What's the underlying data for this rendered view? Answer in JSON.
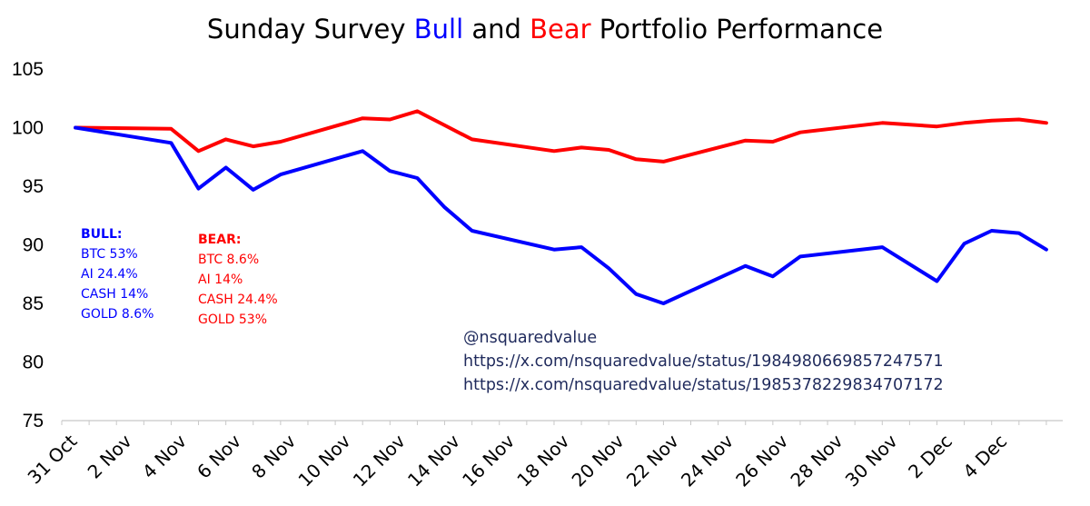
{
  "chart_data": {
    "type": "line",
    "title_parts": [
      {
        "text": "Sunday Survey ",
        "color": "#000000"
      },
      {
        "text": "Bull",
        "color": "#0000ff"
      },
      {
        "text": " and ",
        "color": "#000000"
      },
      {
        "text": "Bear",
        "color": "#ff0000"
      },
      {
        "text": " Portfolio Performance",
        "color": "#000000"
      }
    ],
    "xlabel": "",
    "ylabel": "",
    "ylim": [
      75,
      105
    ],
    "yticks": [
      75,
      80,
      85,
      90,
      95,
      100,
      105
    ],
    "xlim": [
      0,
      36.6
    ],
    "x_tick_positions": [
      0,
      2,
      4,
      6,
      8,
      10,
      12,
      14,
      16,
      18,
      20,
      22,
      24,
      26,
      28,
      30,
      32,
      34
    ],
    "x_tick_labels": [
      "31 Oct",
      "2 Nov",
      "4 Nov",
      "6 Nov",
      "8 Nov",
      "10 Nov",
      "12 Nov",
      "14 Nov",
      "16 Nov",
      "18 Nov",
      "20 Nov",
      "22 Nov",
      "24 Nov",
      "26 Nov",
      "28 Nov",
      "30 Nov",
      "2 Dec",
      "4 Dec"
    ],
    "grid": false,
    "series": [
      {
        "name": "Bull",
        "color": "#0000ff",
        "x": [
          0.5,
          4.0,
          5.0,
          6.0,
          7.0,
          8.0,
          11.0,
          12.0,
          13.0,
          14.0,
          15.0,
          18.0,
          19.0,
          20.0,
          21.0,
          22.0,
          25.0,
          26.0,
          27.0,
          30.0,
          32.0,
          33.0,
          34.0,
          35.0,
          36.0
        ],
        "values": [
          100.0,
          98.7,
          94.8,
          96.6,
          94.7,
          96.0,
          98.0,
          96.3,
          95.7,
          93.2,
          91.2,
          89.6,
          89.8,
          88.0,
          85.8,
          85.0,
          88.2,
          87.3,
          89.0,
          89.8,
          86.9,
          90.1,
          91.2,
          91.0,
          89.6
        ]
      },
      {
        "name": "Bear",
        "color": "#ff0000",
        "x": [
          0.5,
          4.0,
          5.0,
          6.0,
          7.0,
          8.0,
          11.0,
          12.0,
          13.0,
          14.0,
          15.0,
          18.0,
          19.0,
          20.0,
          21.0,
          22.0,
          25.0,
          26.0,
          27.0,
          30.0,
          32.0,
          33.0,
          34.0,
          35.0,
          36.0
        ],
        "values": [
          100.0,
          99.9,
          98.0,
          99.0,
          98.4,
          98.8,
          100.8,
          100.7,
          101.4,
          100.2,
          99.0,
          98.0,
          98.3,
          98.1,
          97.3,
          97.1,
          98.9,
          98.8,
          99.6,
          100.4,
          100.1,
          100.4,
          100.6,
          100.7,
          100.4
        ]
      }
    ],
    "legend": {
      "bull": {
        "title": "BULL:",
        "color": "#0000ff",
        "items": [
          "BTC 53%",
          "AI 24.4%",
          "CASH 14%",
          "GOLD 8.6%"
        ]
      },
      "bear": {
        "title": "BEAR:",
        "color": "#ff0000",
        "items": [
          "BTC 8.6%",
          "AI 14%",
          "CASH 24.4%",
          "GOLD 53%"
        ]
      }
    },
    "annotations": [
      "@nsquaredvalue",
      "https://x.com/nsquaredvalue/status/1984980669857247571",
      "https://x.com/nsquaredvalue/status/1985378229834707172"
    ]
  }
}
